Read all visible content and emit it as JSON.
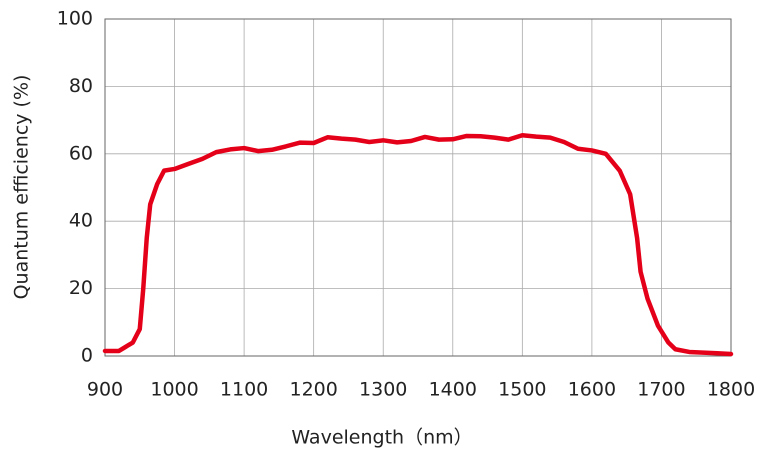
{
  "chart_data": {
    "type": "line",
    "xlabel": "Wavelength（nm）",
    "ylabel": "Quantum efficiency (%)",
    "x": [
      900,
      920,
      940,
      950,
      955,
      960,
      965,
      975,
      985,
      1000,
      1020,
      1040,
      1060,
      1080,
      1100,
      1120,
      1140,
      1160,
      1180,
      1200,
      1220,
      1240,
      1260,
      1280,
      1300,
      1320,
      1340,
      1360,
      1380,
      1400,
      1420,
      1440,
      1460,
      1480,
      1500,
      1520,
      1540,
      1560,
      1580,
      1600,
      1620,
      1640,
      1655,
      1665,
      1670,
      1680,
      1695,
      1710,
      1720,
      1740,
      1760,
      1780,
      1800
    ],
    "series": [
      {
        "color": "#e50019",
        "values": [
          1.5,
          1.5,
          4,
          8,
          20,
          35,
          45,
          51,
          55,
          55.5,
          57,
          58.5,
          60.5,
          61.3,
          61.7,
          60.8,
          61.2,
          62.2,
          63.3,
          63.2,
          64.9,
          64.5,
          64.2,
          63.5,
          64,
          63.4,
          63.8,
          65,
          64.2,
          64.3,
          65.3,
          65.2,
          64.8,
          64.2,
          65.5,
          65.1,
          64.8,
          63.5,
          61.5,
          61,
          60,
          55,
          48,
          35,
          25,
          17,
          9,
          4,
          2,
          1.2,
          1,
          0.8,
          0.6
        ]
      }
    ],
    "xlim": [
      900,
      1800
    ],
    "xticks": [
      900,
      1000,
      1100,
      1200,
      1300,
      1400,
      1500,
      1600,
      1700,
      1800
    ],
    "ylim": [
      0,
      100
    ],
    "yticks": [
      0,
      20,
      40,
      60,
      80,
      100
    ],
    "grid": true
  }
}
